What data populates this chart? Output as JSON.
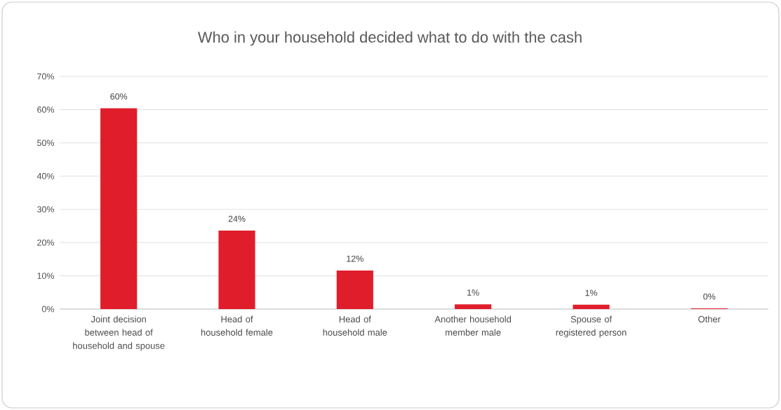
{
  "chart_data": {
    "type": "bar",
    "title": "Who in your household decided what to do with the cash",
    "categories": [
      "Joint decision between head of household and spouse",
      "Head of household female",
      "Head of household male",
      "Another household member male",
      "Spouse of registered person",
      "Other"
    ],
    "values": [
      60.4,
      23.6,
      11.6,
      1.4,
      1.3,
      0.2
    ],
    "value_labels": [
      "60%",
      "24%",
      "12%",
      "1%",
      "1%",
      "0%"
    ],
    "color": "#e01e2b",
    "ylim": [
      0,
      70
    ],
    "yticks": [
      {
        "value": 0,
        "label": "0%"
      },
      {
        "value": 10,
        "label": "10%"
      },
      {
        "value": 20,
        "label": "20%"
      },
      {
        "value": 30,
        "label": "30%"
      },
      {
        "value": 40,
        "label": "40%"
      },
      {
        "value": 50,
        "label": "50%"
      },
      {
        "value": 60,
        "label": "60%"
      },
      {
        "value": 70,
        "label": "70%"
      }
    ],
    "grid": "y"
  }
}
